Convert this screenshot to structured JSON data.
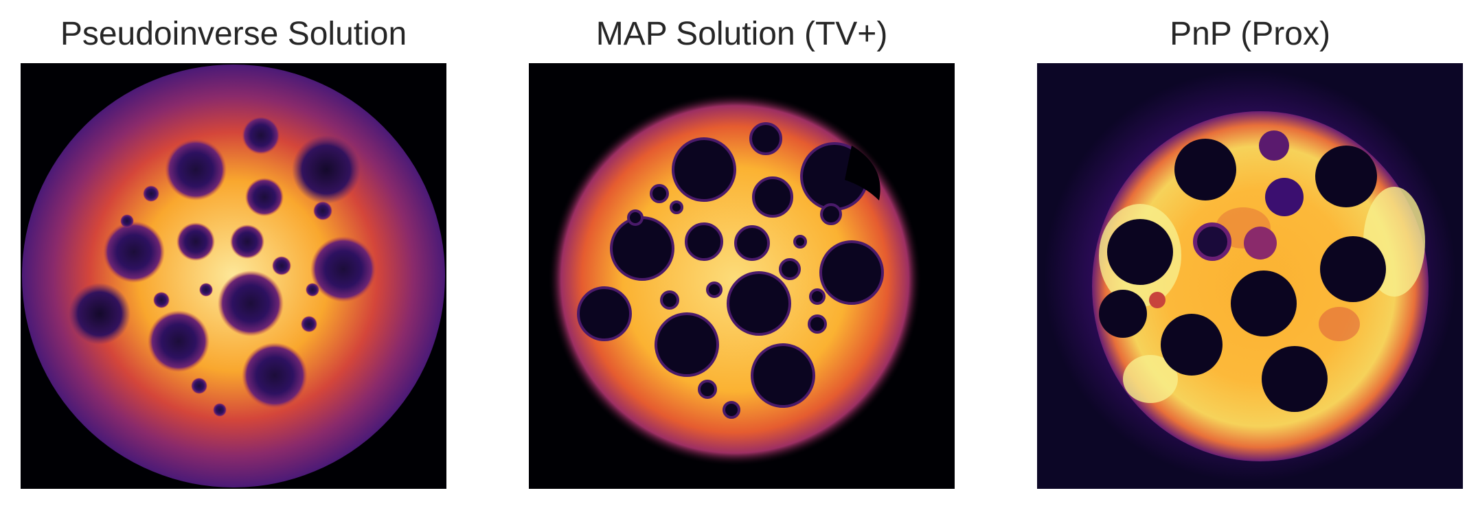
{
  "panels": [
    {
      "title": "Pseudoinverse Solution",
      "variant": "pseudoinverse"
    },
    {
      "title": "MAP Solution (TV+)",
      "variant": "map"
    },
    {
      "title": "PnP (Prox)",
      "variant": "pnp"
    }
  ],
  "colormap": "inferno"
}
